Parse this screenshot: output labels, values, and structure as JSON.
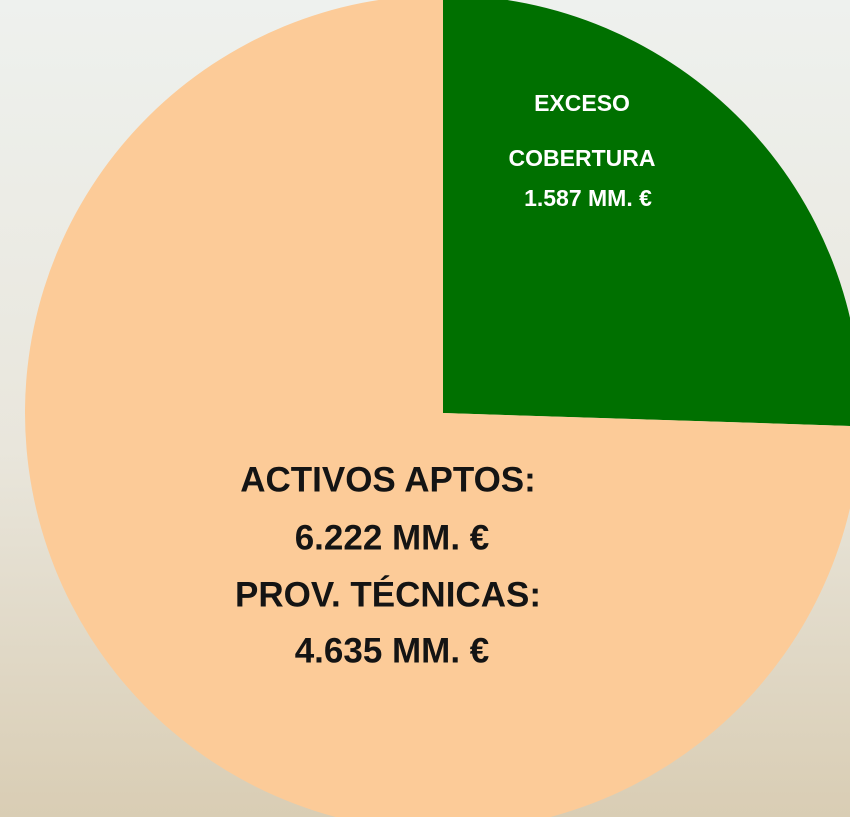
{
  "chart_data": {
    "type": "pie",
    "categories": [
      "EXCESO COBERTURA",
      "PROV. TÉCNICAS:"
    ],
    "values": [
      1587,
      4635
    ],
    "value_labels": [
      "1.587 MM. €",
      "4.635 MM. €"
    ],
    "colors": [
      "#007000",
      "#fccb98"
    ],
    "total": {
      "label": "ACTIVOS APTOS:",
      "value": 6222,
      "value_label": "6.222 MM. €"
    }
  }
}
